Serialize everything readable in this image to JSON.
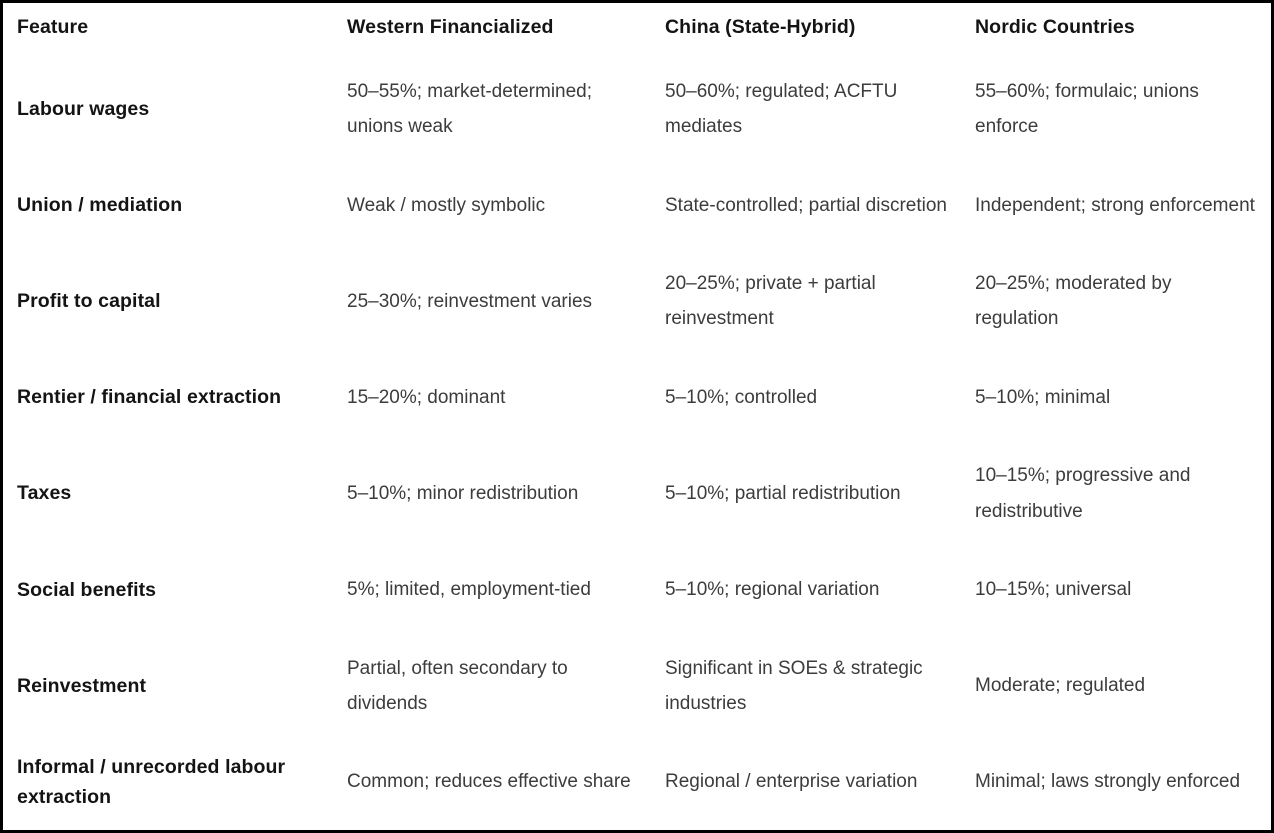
{
  "table": {
    "columns": [
      "Feature",
      "Western Financialized",
      "China (State-Hybrid)",
      "Nordic Countries"
    ],
    "rows": [
      {
        "feature": "Labour wages",
        "western": "50–55%; market-determined; unions weak",
        "china": "50–60%; regulated; ACFTU mediates",
        "nordic": "55–60%; formulaic; unions enforce"
      },
      {
        "feature": "Union / mediation",
        "western": "Weak / mostly symbolic",
        "china": "State-controlled; partial discretion",
        "nordic": "Independent; strong enforcement"
      },
      {
        "feature": "Profit to capital",
        "western": "25–30%; reinvestment varies",
        "china": "20–25%; private + partial reinvestment",
        "nordic": "20–25%; moderated by regulation"
      },
      {
        "feature": "Rentier / financial extraction",
        "western": "15–20%; dominant",
        "china": "5–10%; controlled",
        "nordic": "5–10%; minimal"
      },
      {
        "feature": "Taxes",
        "western": "5–10%; minor redistribution",
        "china": "5–10%; partial redistribution",
        "nordic": "10–15%; progressive and redistributive"
      },
      {
        "feature": "Social benefits",
        "western": "5%; limited, employment-tied",
        "china": "5–10%; regional variation",
        "nordic": "10–15%; universal"
      },
      {
        "feature": "Reinvestment",
        "western": "Partial, often secondary to dividends",
        "china": "Significant in SOEs & strategic industries",
        "nordic": "Moderate; regulated"
      },
      {
        "feature": "Informal / unrecorded labour extraction",
        "western": "Common; reduces effective share",
        "china": "Regional / enterprise variation",
        "nordic": "Minimal; laws strongly enforced"
      }
    ]
  },
  "colors": {
    "border": "#000000",
    "header_text": "#141414",
    "body_text": "#3c3c3c",
    "background": "#ffffff"
  }
}
